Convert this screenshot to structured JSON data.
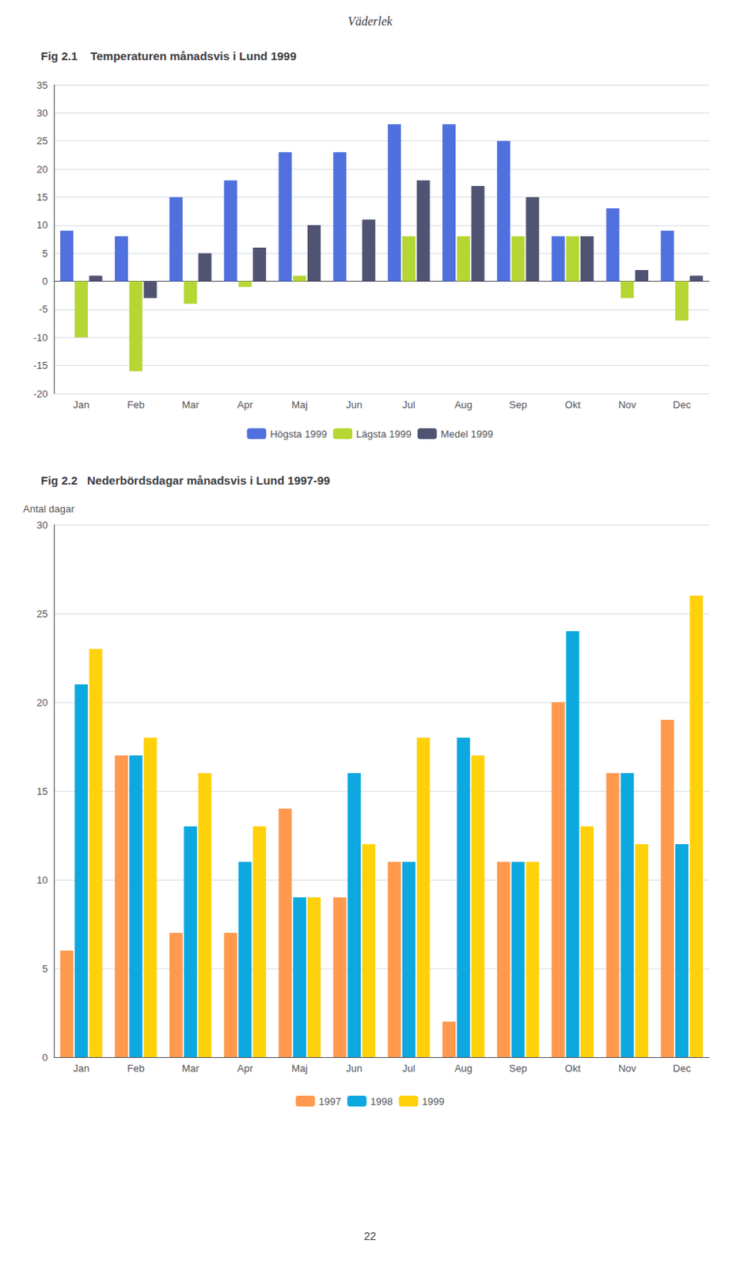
{
  "title": "Väderlek",
  "annotations": [
    "22"
  ],
  "chart_data": [
    {
      "type": "bar",
      "title": "Fig 2.1    Temperaturen månadsvis i Lund 1999",
      "categories": [
        "Jan",
        "Feb",
        "Mar",
        "Apr",
        "Maj",
        "Jun",
        "Jul",
        "Aug",
        "Sep",
        "Okt",
        "Nov",
        "Dec"
      ],
      "series": [
        {
          "name": "Högsta 1999",
          "values": [
            9,
            8,
            15,
            18,
            23,
            23,
            28,
            28,
            25,
            8,
            13,
            9
          ]
        },
        {
          "name": "Lägsta 1999",
          "values": [
            -10,
            -16,
            -4,
            -1,
            1,
            0,
            8,
            8,
            8,
            8,
            -3,
            -7
          ]
        },
        {
          "name": "Medel 1999",
          "values": [
            1,
            -3,
            5,
            6,
            10,
            11,
            18,
            17,
            15,
            8,
            2,
            1
          ]
        }
      ],
      "ylim": [
        -20,
        35
      ],
      "yticks": [
        -20,
        -15,
        -10,
        -5,
        0,
        5,
        10,
        15,
        20,
        25,
        30,
        35
      ],
      "grid": true,
      "legend": "bottom"
    },
    {
      "type": "bar",
      "title": "Fig 2.2   Nederbördsdagar månadsvis i Lund 1997-99",
      "ylabel": "Antal dagar",
      "categories": [
        "Jan",
        "Feb",
        "Mar",
        "Apr",
        "Maj",
        "Jun",
        "Jul",
        "Aug",
        "Sep",
        "Okt",
        "Nov",
        "Dec"
      ],
      "series": [
        {
          "name": "1997",
          "values": [
            6,
            17,
            7,
            7,
            14,
            9,
            11,
            2,
            11,
            20,
            16,
            19
          ]
        },
        {
          "name": "1998",
          "values": [
            21,
            17,
            13,
            11,
            9,
            16,
            11,
            18,
            11,
            24,
            16,
            12
          ]
        },
        {
          "name": "1999",
          "values": [
            23,
            18,
            16,
            13,
            9,
            12,
            18,
            17,
            11,
            13,
            12,
            26
          ]
        }
      ],
      "ylim": [
        0,
        30
      ],
      "yticks": [
        0,
        5,
        10,
        15,
        20,
        25,
        30
      ],
      "grid": true,
      "legend": "bottom"
    }
  ]
}
